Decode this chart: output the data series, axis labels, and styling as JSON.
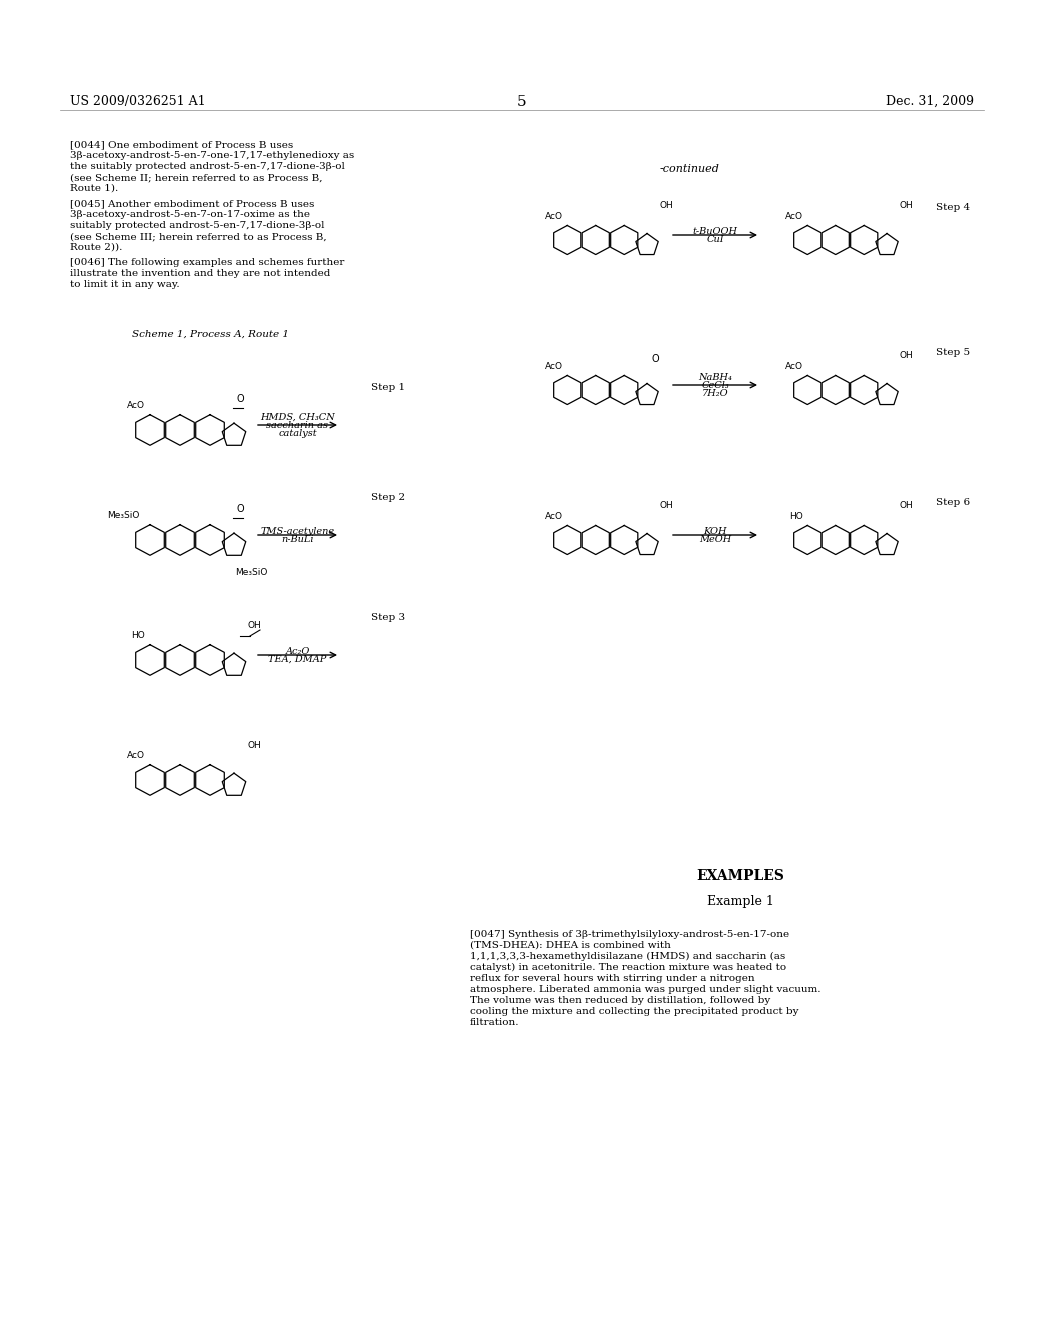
{
  "page_number": "5",
  "patent_number": "US 2009/0326251 A1",
  "patent_date": "Dec. 31, 2009",
  "background_color": "#ffffff",
  "text_color": "#000000",
  "body_text": [
    {
      "tag": "[0044]",
      "text": "One embodiment of Process B uses 3β-acetoxy-androst-5-en-7-one-17,17-ethylenedioxy as the suitably protected androst-5-en-7,17-dione-3β-ol (see Scheme II; herein referred to as Process B, Route 1)."
    },
    {
      "tag": "[0045]",
      "text": "Another embodiment of Process B uses 3β-acetoxy-androst-5-en-7-on-17-oxime as the suitably protected androst-5-en-7,17-dione-3β-ol (see Scheme III; herein referred to as Process B, Route 2))."
    },
    {
      "tag": "[0046]",
      "text": "The following examples and schemes further illustrate the invention and they are not intended to limit it in any way."
    }
  ],
  "scheme_label": "Scheme 1, Process A, Route 1",
  "steps_left": [
    {
      "step": "Step 1",
      "reagents": [
        "HMDS, CH₃CN",
        "saccharin as",
        "catalyst"
      ],
      "arrow_direction": "right"
    },
    {
      "step": "Step 2",
      "reagents": [
        "TMS-acetylene",
        "n-BuLi"
      ],
      "arrow_direction": "right"
    },
    {
      "step": "Step 3",
      "reagents": [
        "Ac₂O",
        "TEA, DMAP"
      ],
      "arrow_direction": "right"
    }
  ],
  "steps_right": [
    {
      "step": "Step 4",
      "reagents": [
        "t-BuOOH",
        "CuI"
      ],
      "arrow_direction": "right",
      "continued": true
    },
    {
      "step": "Step 5",
      "reagents": [
        "NaBH₄",
        "CeCl₃",
        "7H₂O"
      ],
      "arrow_direction": "right"
    },
    {
      "step": "Step 6",
      "reagents": [
        "KOH",
        "MeOH"
      ],
      "arrow_direction": "right"
    }
  ],
  "examples_header": "EXAMPLES",
  "example1_header": "Example 1",
  "example1_text": "[0047] Synthesis of 3β-trimethylsilyloxy-androst-5-en-17-one (TMS-DHEA): DHEA is combined with 1,1,1,3,3,3-hexamethyldisilazane (HMDS) and saccharin (as catalyst) in acetonitrile. The reaction mixture was heated to reflux for several hours with stirring under a nitrogen atmosphere. Liberated ammonia was purged under slight vacuum. The volume was then reduced by distillation, followed by cooling the mixture and collecting the precipitated product by filtration."
}
